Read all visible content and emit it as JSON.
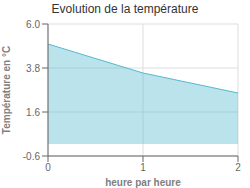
{
  "chart_data": {
    "type": "area",
    "title": "Evolution de la température",
    "xlabel": "heure par heure",
    "ylabel": "Température en °C",
    "x": [
      0,
      1,
      2
    ],
    "values": [
      5.0,
      3.55,
      2.55
    ],
    "color": "#55b8d0",
    "xlim": [
      0,
      2
    ],
    "xticks": [
      0,
      1,
      2
    ],
    "ylim": [
      -0.6,
      6.0
    ],
    "yticks": [
      -0.6,
      1.6,
      3.8,
      {
        "value": 6.0,
        "label": "6.0"
      }
    ],
    "grid": true
  }
}
